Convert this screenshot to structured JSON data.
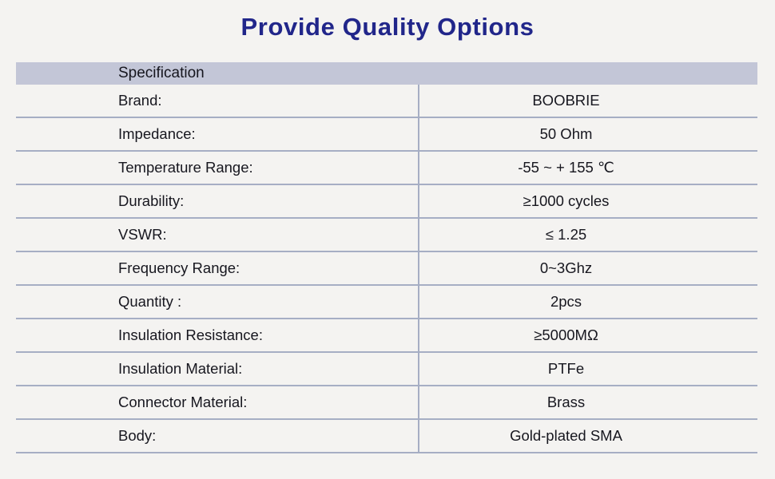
{
  "title": "Provide Quality Options",
  "table": {
    "header": "Specification",
    "rows": [
      {
        "label": "Brand:",
        "value": "BOOBRIE"
      },
      {
        "label": "Impedance:",
        "value": "50 Ohm"
      },
      {
        "label": "Temperature Range:",
        "value": "-55 ~ + 155 ℃"
      },
      {
        "label": "Durability:",
        "value": "≥1000 cycles"
      },
      {
        "label": "VSWR:",
        "value": "≤ 1.25"
      },
      {
        "label": "Frequency Range:",
        "value": "0~3Ghz"
      },
      {
        "label": "Quantity :",
        "value": "2pcs"
      },
      {
        "label": "Insulation Resistance:",
        "value": "≥5000MΩ"
      },
      {
        "label": "Insulation Material:",
        "value": "PTFe"
      },
      {
        "label": "Connector Material:",
        "value": "Brass"
      },
      {
        "label": "Body:",
        "value": "Gold-plated SMA"
      }
    ]
  },
  "colors": {
    "page_background": "#f4f3f1",
    "title_text": "#21268a",
    "header_background": "#c3c6d7",
    "grid_line": "#a6aec4",
    "body_text": "#17171f"
  }
}
